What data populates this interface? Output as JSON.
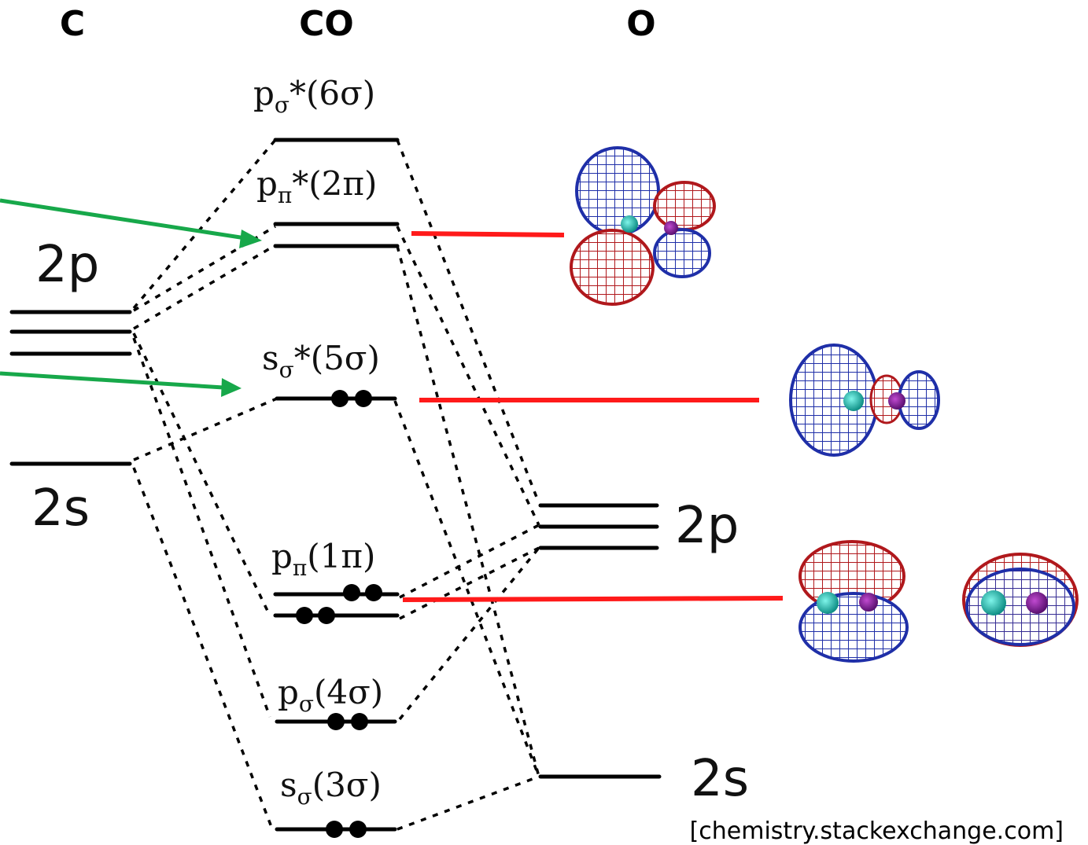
{
  "headers": {
    "carbon": "C",
    "co": "CO",
    "oxygen": "O"
  },
  "carbon_levels": {
    "p": "2p",
    "s": "2s"
  },
  "oxygen_levels": {
    "p": "2p",
    "s": "2s"
  },
  "mo_labels": {
    "six_sigma": {
      "base": "p",
      "sub": "σ",
      "rest": "*(6σ)"
    },
    "two_pi": {
      "base": "p",
      "sub": "π",
      "rest": "*(2π)"
    },
    "five_sigma": {
      "base": "s",
      "sub": "σ",
      "rest": "*(5σ)"
    },
    "one_pi": {
      "base": "p",
      "sub": "π",
      "rest": "(1π)"
    },
    "four_sigma": {
      "base": "p",
      "sub": "σ",
      "rest": "(4σ)"
    },
    "three_sigma": {
      "base": "s",
      "sub": "σ",
      "rest": "(3σ)"
    }
  },
  "source": "[chemistry.stackexchange.com]",
  "colors": {
    "arrow": "#17a84a",
    "connector": "#ff1a1a",
    "lobe_blue": "#1f2fa8",
    "lobe_red": "#b0181c",
    "nucleus": "#1bbfb0"
  }
}
